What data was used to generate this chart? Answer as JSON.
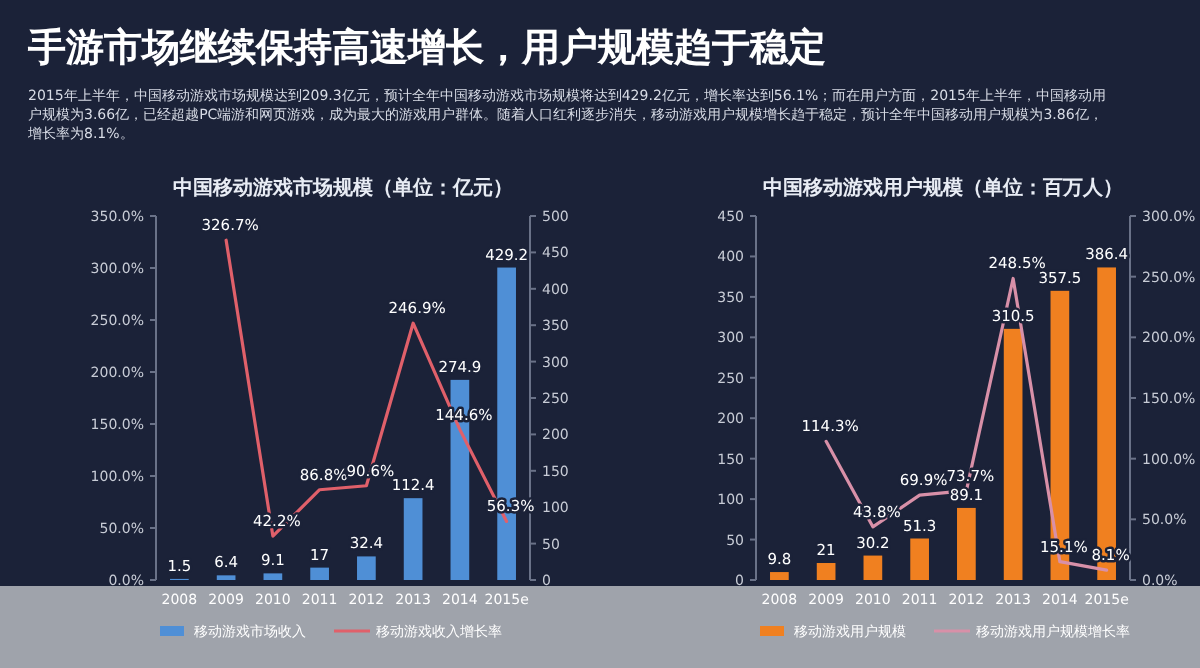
{
  "chart_data": [
    {
      "type": "other",
      "title": "手游市场继续保持高速增长，用户规模趋于稳定",
      "annotations": [
        "2015年上半年，中国移动游戏市场规模达到209.3亿元，预计全年中国移动游戏市场规模将达到429.2亿元，增长率达到56.1%；而在用户方面，2015年上半年，中国移动用户规模为3.66亿，已经超越PC端游和网页游戏，成为最大的游戏用户群体。随着人口红利逐步消失，移动游戏用户规模增长趋于稳定，预计全年中国移动用户规模为3.86亿，增长率为8.1%。"
      ]
    },
    {
      "type": "bar",
      "title": "中国移动游戏市场规模（单位：亿元）",
      "categories": [
        "2008",
        "2009",
        "2010",
        "2011",
        "2012",
        "2013",
        "2014",
        "2015e"
      ],
      "ylim": [
        0,
        350
      ],
      "yticks": [
        {
          "value": 0,
          "label": "0.0%"
        },
        {
          "value": 50,
          "label": "50.0%"
        },
        {
          "value": 100,
          "label": "100.0%"
        },
        {
          "value": 150,
          "label": "150.0%"
        },
        {
          "value": 200,
          "label": "200.0%"
        },
        {
          "value": 250,
          "label": "250.0%"
        },
        {
          "value": 300,
          "label": "300.0%"
        },
        {
          "value": 350,
          "label": "350.0%"
        }
      ],
      "y2lim": [
        0,
        500
      ],
      "y2ticks": [
        0,
        50,
        100,
        150,
        200,
        250,
        300,
        350,
        400,
        450,
        500
      ],
      "series": [
        {
          "name": "移动游戏市场收入",
          "type": "bar",
          "axis": "y2",
          "color": "#4f8fd6",
          "values": [
            1.5,
            6.4,
            9.1,
            17,
            32.4,
            112.4,
            274.9,
            429.2
          ],
          "value_labels": [
            "1.5",
            "6.4",
            "9.1",
            "17",
            "32.4",
            "112.4",
            "274.9",
            "429.2"
          ]
        },
        {
          "name": "移动游戏收入增长率",
          "type": "line",
          "color": "#e0606a",
          "values": [
            null,
            326.7,
            42.2,
            86.8,
            90.6,
            246.9,
            144.6,
            56.3
          ],
          "value_labels": [
            null,
            "326.7%",
            "42.2%",
            "86.8%",
            "90.6%",
            "246.9%",
            "144.6%",
            "56.3%"
          ]
        }
      ],
      "legend": "bottom",
      "grid": false,
      "marker": "none"
    },
    {
      "type": "bar",
      "title": "中国移动游戏用户规模（单位：百万人）",
      "categories": [
        "2008",
        "2009",
        "2010",
        "2011",
        "2012",
        "2013",
        "2014",
        "2015e"
      ],
      "ylim": [
        0,
        450
      ],
      "yticks": [
        0,
        50,
        100,
        150,
        200,
        250,
        300,
        350,
        400,
        450
      ],
      "y2lim": [
        0,
        300
      ],
      "y2ticks": [
        {
          "value": 0,
          "label": "0.0%"
        },
        {
          "value": 50,
          "label": "50.0%"
        },
        {
          "value": 100,
          "label": "100.0%"
        },
        {
          "value": 150,
          "label": "150.0%"
        },
        {
          "value": 200,
          "label": "200.0%"
        },
        {
          "value": 250,
          "label": "250.0%"
        },
        {
          "value": 300,
          "label": "300.0%"
        }
      ],
      "series": [
        {
          "name": "移动游戏用户规模",
          "type": "bar",
          "color": "#f08020",
          "values": [
            9.8,
            21,
            30.2,
            51.3,
            89.1,
            310.5,
            357.5,
            386.4
          ],
          "value_labels": [
            "9.8",
            "21",
            "30.2",
            "51.3",
            "89.1",
            "310.5",
            "357.5",
            "386.4"
          ]
        },
        {
          "name": "移动游戏用户规模增长率",
          "type": "line",
          "axis": "y2",
          "color": "#d890a8",
          "values": [
            null,
            114.3,
            43.8,
            69.9,
            73.7,
            248.5,
            15.1,
            8.1
          ],
          "value_labels": [
            null,
            "114.3%",
            "43.8%",
            "69.9%",
            "73.7%",
            "248.5%",
            "15.1%",
            "8.1%"
          ]
        }
      ],
      "legend": "bottom",
      "grid": false,
      "marker": "none"
    }
  ]
}
